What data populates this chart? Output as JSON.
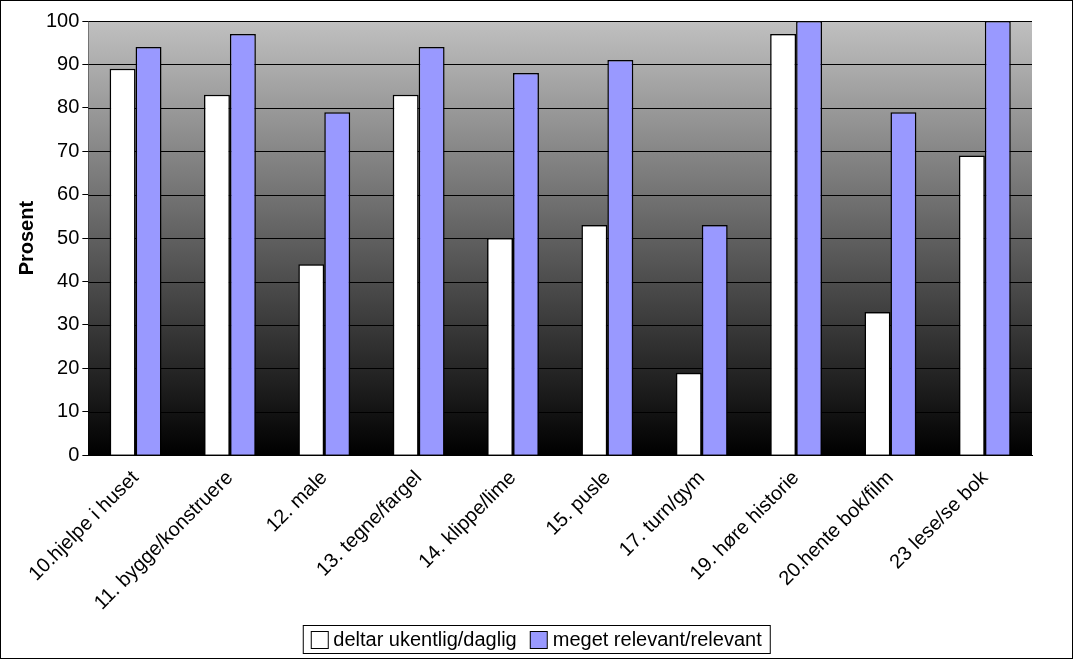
{
  "chart_data": {
    "type": "bar",
    "ylabel": "Prosent",
    "categories": [
      "10.hjelpe i huset",
      "11. bygge/konstruere",
      "12. male",
      "13. tegne/fargel",
      "14. klippe/lime",
      "15. pusle",
      "17. turn/gym",
      "19. høre historie",
      "20.hente bok/film",
      "23 lese/se bok"
    ],
    "series": [
      {
        "name": "deltar ukentlig/daglig",
        "color": "#ffffff",
        "values": [
          89,
          83,
          44,
          83,
          50,
          53,
          19,
          97,
          33,
          69
        ]
      },
      {
        "name": "meget relevant/relevant",
        "color": "#9999ff",
        "values": [
          94,
          97,
          79,
          94,
          88,
          91,
          53,
          100,
          79,
          100
        ]
      }
    ],
    "ylim": [
      0,
      100
    ],
    "yticks": [
      0,
      10,
      20,
      30,
      40,
      50,
      60,
      70,
      80,
      90,
      100
    ],
    "grid": "y",
    "legend": "bottom"
  }
}
